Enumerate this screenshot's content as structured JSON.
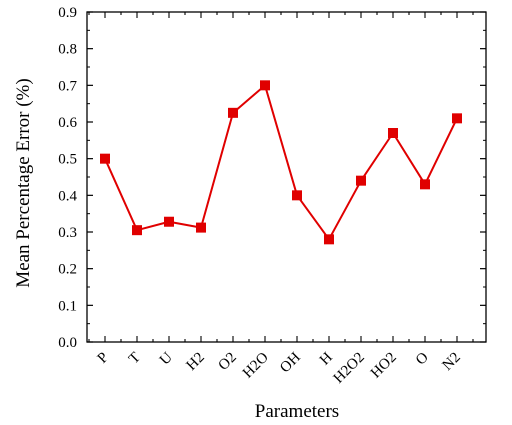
{
  "chart_data": {
    "type": "line",
    "title": "",
    "xlabel": "Parameters",
    "ylabel": "Mean Percentage Error (%)",
    "categories": [
      "P",
      "T",
      "U",
      "H2",
      "O2",
      "H2O",
      "OH",
      "H",
      "H2O2",
      "HO2",
      "O",
      "N2"
    ],
    "series": [
      {
        "values": [
          0.5,
          0.305,
          0.328,
          0.312,
          0.625,
          0.7,
          0.4,
          0.28,
          0.44,
          0.57,
          0.43,
          0.61
        ]
      }
    ],
    "ylim": [
      0.0,
      0.9
    ],
    "yticks": [
      "0.0",
      "0.1",
      "0.2",
      "0.3",
      "0.4",
      "0.5",
      "0.6",
      "0.7",
      "0.8",
      "0.9"
    ],
    "grid": false,
    "legend": "none",
    "colors": {
      "series": "#e00000",
      "axis": "#000000"
    }
  }
}
